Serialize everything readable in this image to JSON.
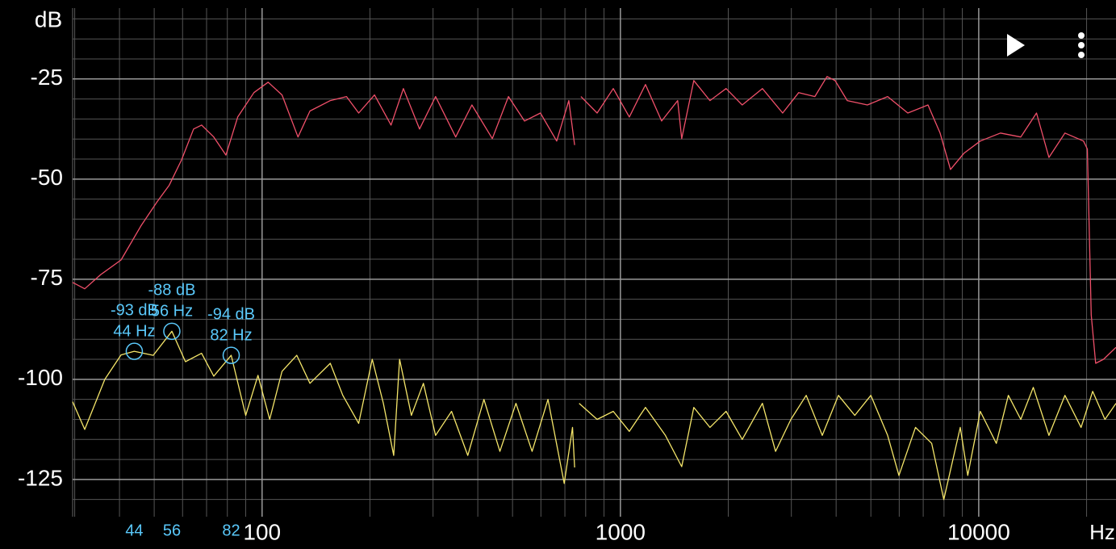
{
  "chart_data": {
    "type": "line",
    "ylabel": "dB",
    "xlabel": "Hz",
    "xscale": "log",
    "xlim": [
      29.6,
      24160
    ],
    "ylim": [
      -134.3,
      -7.3
    ],
    "xticks": [
      100,
      1000,
      10000
    ],
    "yticks": [
      -25,
      -50,
      -75,
      -100,
      -125
    ],
    "xminorticks": [
      30,
      40,
      50,
      60,
      70,
      80,
      90,
      200,
      300,
      400,
      500,
      600,
      700,
      800,
      900,
      2000,
      3000,
      4000,
      5000,
      6000,
      7000,
      8000,
      9000,
      20000
    ],
    "yminorticks": [
      -10,
      -15,
      -20,
      -30,
      -35,
      -40,
      -45,
      -55,
      -60,
      -65,
      -70,
      -80,
      -85,
      -90,
      -95,
      -105,
      -110,
      -115,
      -120,
      -130
    ],
    "grid": true,
    "series": [
      {
        "color": "#f0506a",
        "x": [
          29.6,
          32,
          35.5,
          40.4,
          45.9,
          51,
          55,
          59.6,
          64.4,
          67.8,
          73.3,
          79.3,
          85.5,
          94.9,
          104,
          113.7,
          126,
          136,
          155,
          172,
          186,
          206,
          229,
          248,
          275,
          305,
          347,
          385,
          439,
          487,
          540,
          598,
          664,
          718,
          745,
          null,
          776,
          861,
          955,
          1059,
          1175,
          1303,
          1445,
          1483,
          1603,
          1778,
          1972,
          2188,
          2490,
          2836,
          3145,
          3489,
          3773,
          3974,
          4297,
          4890,
          5570,
          6340,
          7216,
          7800,
          8340,
          9103,
          10100,
          11500,
          13100,
          14500,
          15700,
          17400,
          19600,
          20100,
          20600,
          21200,
          22300,
          24160
        ],
        "values": [
          -75.8,
          -77.4,
          -73.8,
          -70.2,
          -61.7,
          -55.6,
          -51.6,
          -45.2,
          -37.5,
          -36.5,
          -39.5,
          -44,
          -34.5,
          -28.4,
          -25.8,
          -29,
          -39.5,
          -33,
          -30.4,
          -29.4,
          -33.5,
          -29,
          -36.5,
          -27.4,
          -37.5,
          -29.4,
          -39.5,
          -31.5,
          -39.9,
          -29.4,
          -35.5,
          -33.5,
          -40.5,
          -30.4,
          -41.5,
          null,
          -29.4,
          -33.5,
          -27.4,
          -34.5,
          -26.4,
          -35.5,
          -30.4,
          -39.9,
          -25.4,
          -30.4,
          -27.4,
          -31.5,
          -27.4,
          -33.5,
          -28.4,
          -29.4,
          -24.4,
          -25.4,
          -30.4,
          -31.5,
          -29.4,
          -33.5,
          -31.5,
          -38.5,
          -47.6,
          -43.5,
          -40.5,
          -38.5,
          -39.5,
          -33.5,
          -44.6,
          -38.5,
          -40.5,
          -42.5,
          -83.9,
          -96,
          -95,
          -92
        ]
      },
      {
        "color": "#f5e66a",
        "x": [
          29.6,
          32,
          36.4,
          40.4,
          44,
          49.7,
          56,
          61.1,
          67.8,
          73.3,
          82,
          90,
          97.4,
          105,
          113.7,
          125,
          136,
          155,
          168,
          186,
          203,
          218,
          233,
          242,
          261,
          282,
          305,
          338,
          375,
          416,
          461,
          511,
          567,
          628,
          697,
          735,
          745,
          null,
          767,
          861,
          955,
          1059,
          1175,
          1335,
          1483,
          1603,
          1778,
          1972,
          2188,
          2490,
          2710,
          2990,
          3300,
          3660,
          4060,
          4510,
          5000,
          5570,
          5990,
          6660,
          7390,
          7990,
          8880,
          9320,
          10100,
          11200,
          12100,
          13100,
          14200,
          15700,
          17400,
          19300,
          20800,
          22500,
          24160
        ],
        "values": [
          -105.6,
          -112.5,
          -100,
          -93.9,
          -93,
          -94,
          -88,
          -95.6,
          -93.5,
          -99.2,
          -94,
          -109,
          -99,
          -110,
          -98,
          -94,
          -101,
          -96,
          -104,
          -111,
          -95,
          -106,
          -119,
          -95,
          -109,
          -101,
          -114,
          -108,
          -119,
          -105,
          -118,
          -106,
          -118,
          -105,
          -126,
          -112,
          -122,
          null,
          -106,
          -110,
          -108,
          -113,
          -107,
          -114,
          -121.8,
          -107,
          -112,
          -108,
          -115,
          -106,
          -118,
          -110,
          -104,
          -114,
          -104,
          -109,
          -104,
          -114,
          -124,
          -112,
          -116,
          -130,
          -112,
          -124,
          -108,
          -116,
          -104,
          -110,
          -102,
          -114,
          -104,
          -112,
          -103,
          -110,
          -106
        ]
      }
    ],
    "marker_color": "#5ac8fa",
    "markers": [
      {
        "x": 44,
        "y": -93,
        "y_label": "-93 dB",
        "x_label": "44 Hz"
      },
      {
        "x": 56,
        "y": -88,
        "y_label": "-88 dB",
        "x_label": "56 Hz"
      },
      {
        "x": 82,
        "y": -94,
        "y_label": "-94 dB",
        "x_label": "82 Hz"
      }
    ]
  }
}
